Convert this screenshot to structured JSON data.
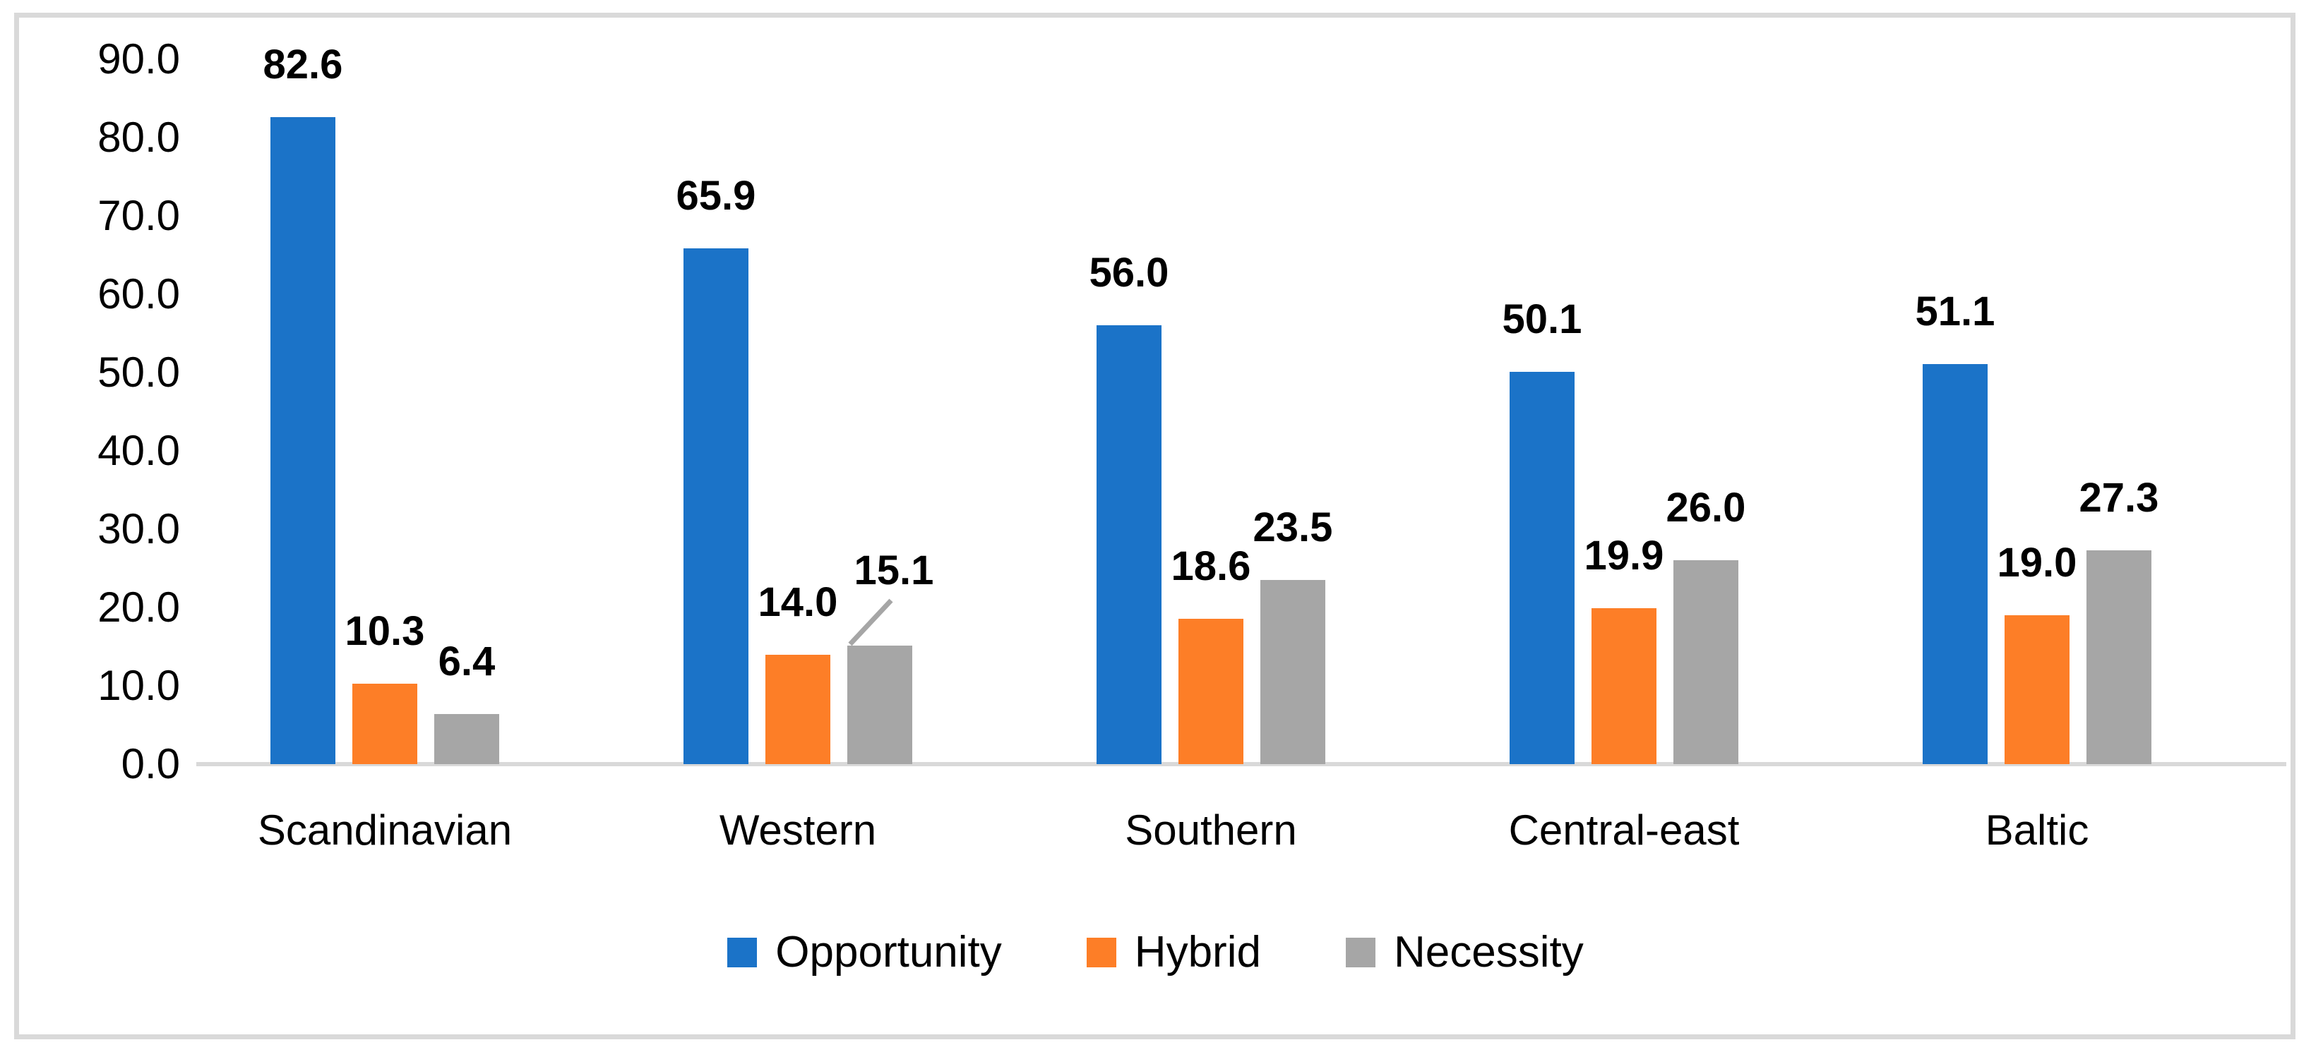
{
  "chart_data": {
    "type": "bar",
    "title": "",
    "xlabel": "",
    "ylabel": "",
    "categories": [
      "Scandinavian",
      "Western",
      "Southern",
      "Central-east",
      "Baltic"
    ],
    "series": [
      {
        "name": "Opportunity",
        "color": "#1b73c8",
        "values": [
          82.6,
          65.9,
          56.0,
          50.1,
          51.1
        ],
        "labels": [
          "82.6",
          "65.9",
          "56.0",
          "50.1",
          "51.1"
        ]
      },
      {
        "name": "Hybrid",
        "color": "#fd7e27",
        "values": [
          10.3,
          14.0,
          18.6,
          19.9,
          19.0
        ],
        "labels": [
          "10.3",
          "14.0",
          "18.6",
          "19.9",
          "19.0"
        ]
      },
      {
        "name": "Necessity",
        "color": "#a6a6a6",
        "values": [
          6.4,
          15.1,
          23.5,
          26.0,
          27.3
        ],
        "labels": [
          "6.4",
          "15.1",
          "23.5",
          "26.0",
          "27.3"
        ]
      }
    ],
    "y_axis": {
      "min": 0,
      "max": 90,
      "step": 10,
      "tick_labels": [
        "90.0",
        "80.0",
        "70.0",
        "60.0",
        "50.0",
        "40.0",
        "30.0",
        "20.0",
        "10.0",
        "0.0"
      ]
    },
    "legend": {
      "position": "bottom",
      "entries": [
        "Opportunity",
        "Hybrid",
        "Necessity"
      ]
    },
    "grid": false,
    "data_labels": {
      "shown": true,
      "decimals": 1,
      "callout": {
        "category_index": 1,
        "series_index": 2,
        "label": "15.1"
      }
    },
    "colors": {
      "frame_border": "#d9d9d9",
      "axis_line": "#d9d9d9",
      "callout_line": "#a6a6a6",
      "text": "#000000",
      "background": "#ffffff"
    }
  }
}
